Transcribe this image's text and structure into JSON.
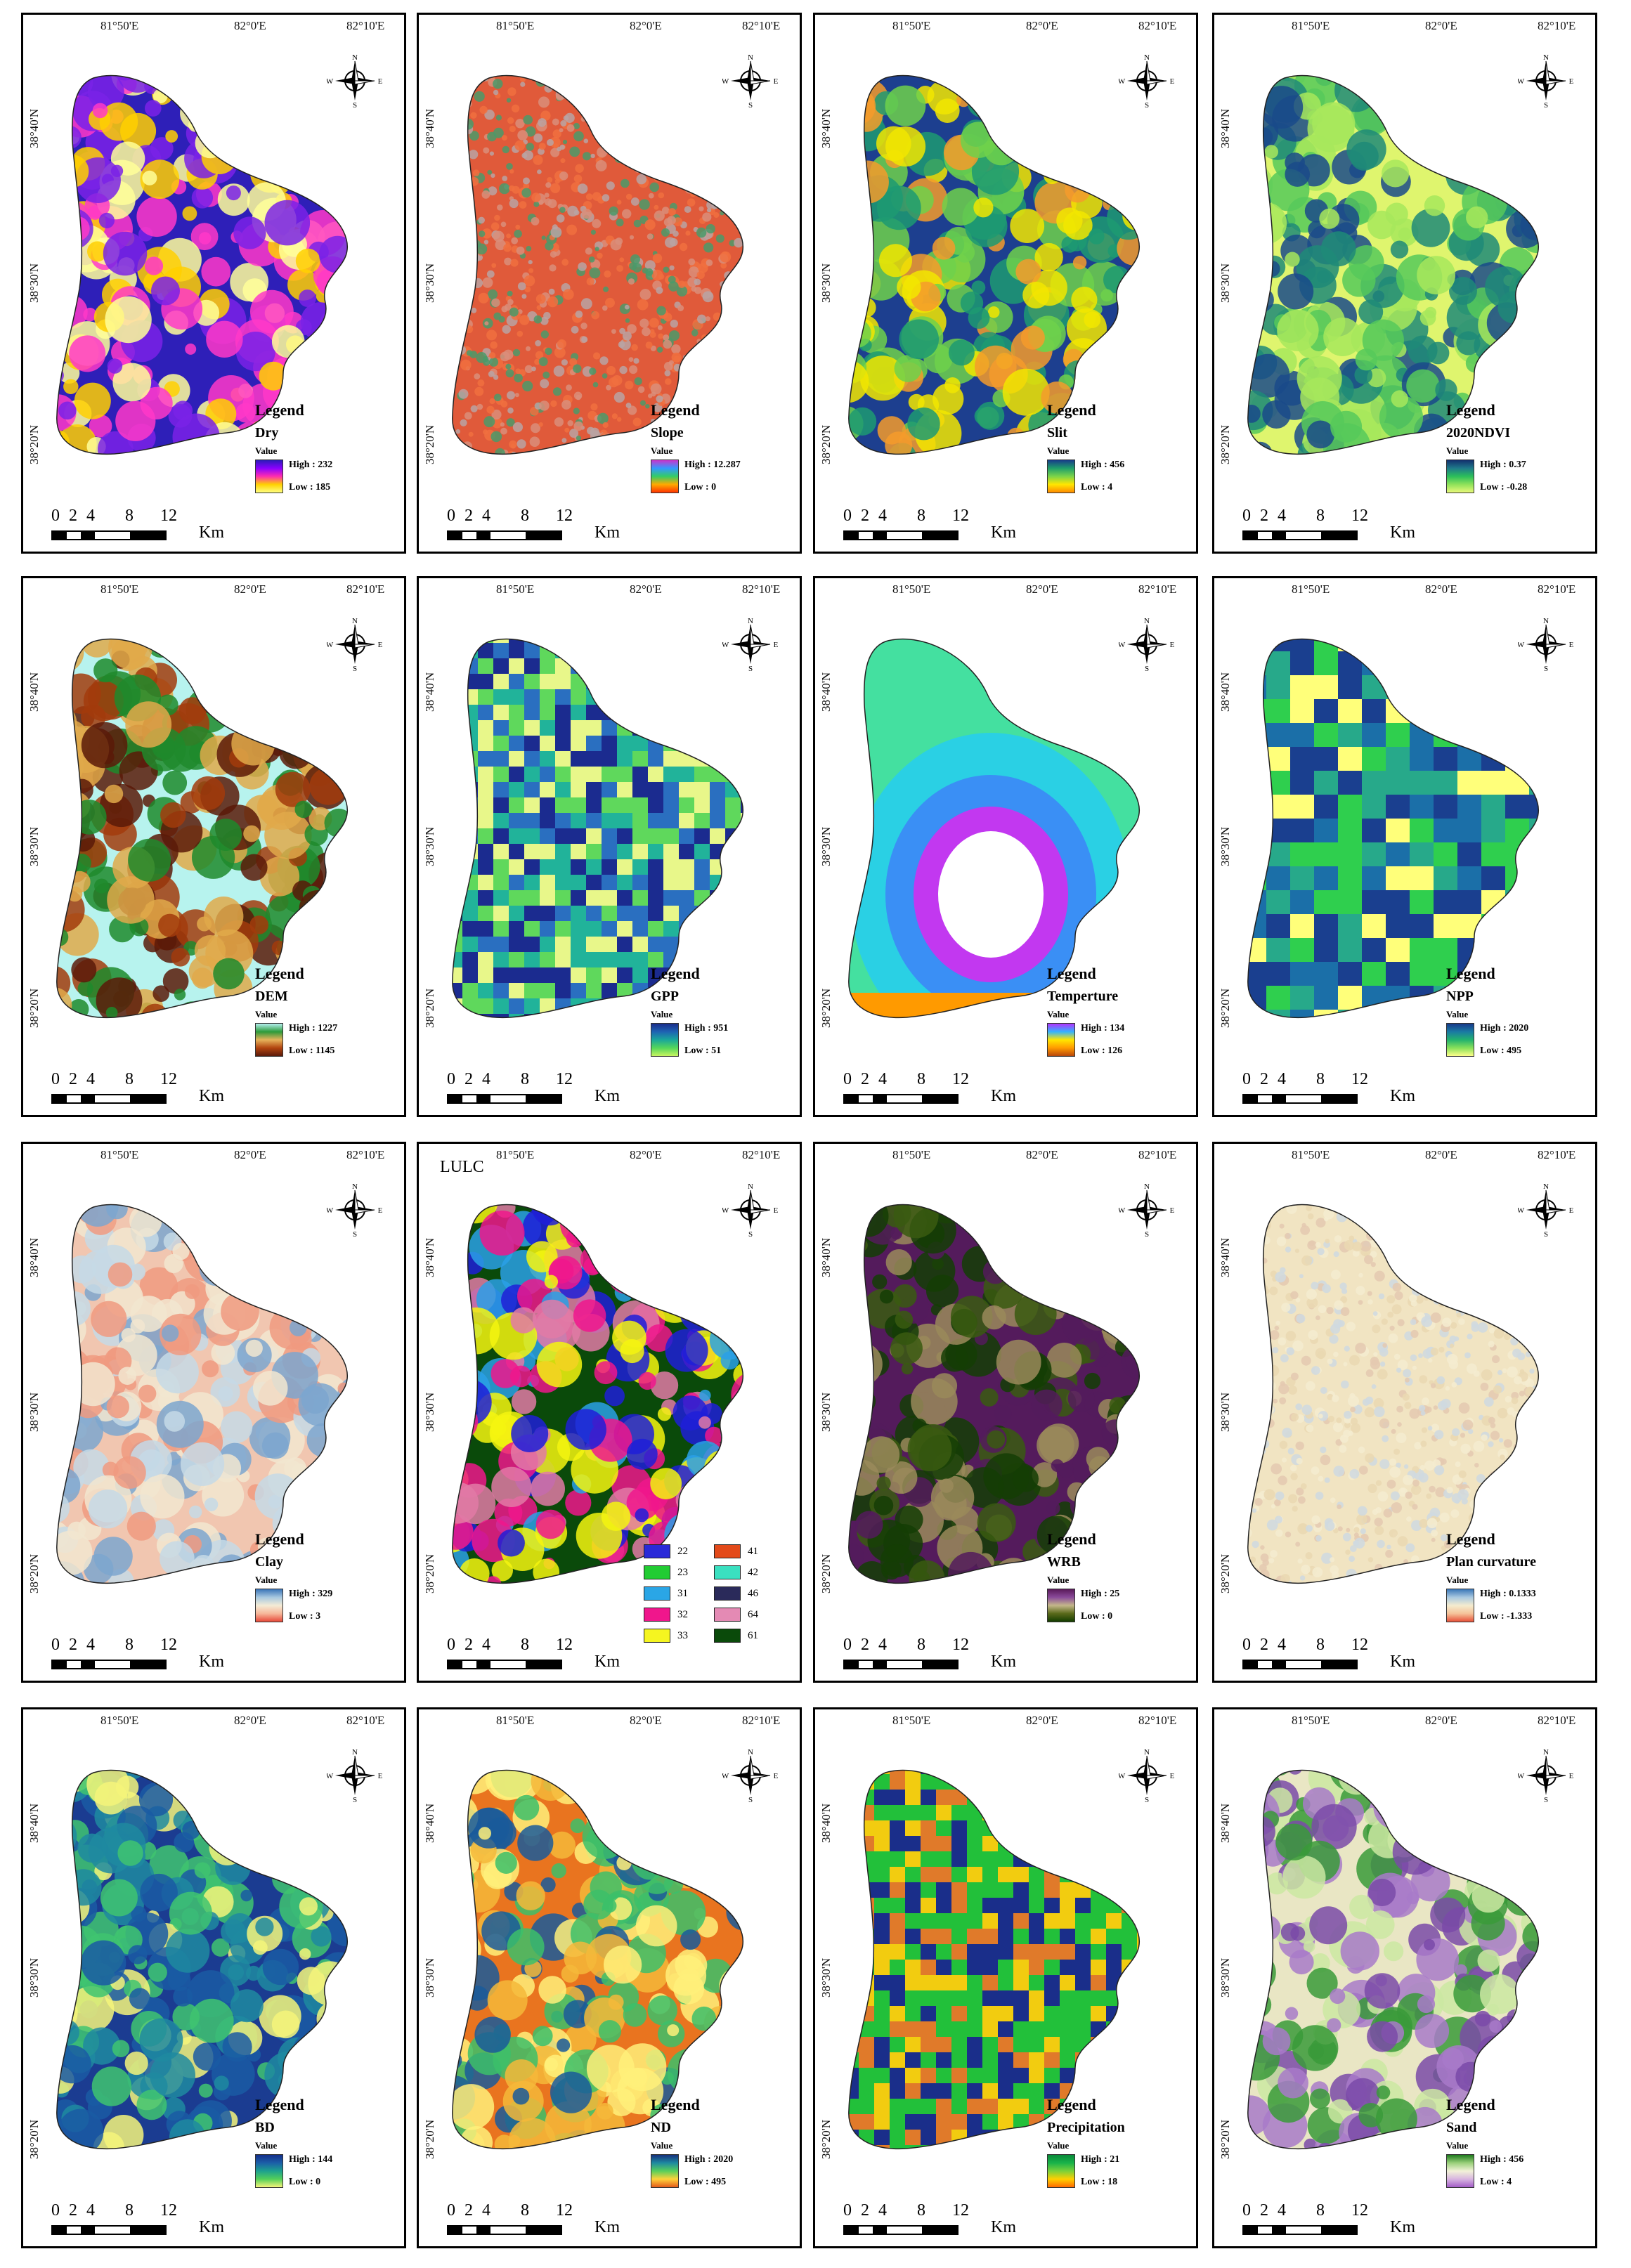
{
  "figure": {
    "lon_labels": [
      "81°50'E",
      "82°0'E",
      "82°10'E"
    ],
    "lat_labels": [
      "38°40'N",
      "38°30'N",
      "38°20'N"
    ],
    "compass": {
      "n": "N",
      "s": "S",
      "e": "E",
      "w": "W"
    },
    "scale": {
      "ticks": [
        "0",
        "2",
        "4",
        "8",
        "12"
      ],
      "unit": "Km"
    },
    "legend_word": "Legend",
    "value_word": "Value"
  },
  "panels": [
    {
      "id": "dry",
      "layer": "Dry",
      "high": "High : 232",
      "low": "Low : 185",
      "ramp": [
        "#ffff80",
        "#ffd100",
        "#ff2db0",
        "#8a00ff",
        "#2b1bb8"
      ],
      "fill": [
        "#2e1fb8",
        "#7a22e6",
        "#ff38c8",
        "#ffd000",
        "#ffff99"
      ]
    },
    {
      "id": "slope",
      "layer": "Slope",
      "high": "High : 12.287",
      "low": "Low : 0",
      "ramp": [
        "#ff3300",
        "#ffaa00",
        "#33cc66",
        "#3399ff",
        "#cc33cc"
      ],
      "fill": [
        "#e05a3a",
        "#d98e7a",
        "#b9a3a3",
        "#4a9a6a",
        "#f07040"
      ]
    },
    {
      "id": "slit",
      "layer": "Slit",
      "high": "High : 456",
      "low": "Low : 4",
      "ramp": [
        "#ff8a00",
        "#ffe600",
        "#7bd44a",
        "#1f9e6a",
        "#173d8a"
      ],
      "fill": [
        "#1d3f8f",
        "#1d9a72",
        "#6fd14b",
        "#f2e600",
        "#f59b2b"
      ]
    },
    {
      "id": "ndvi",
      "layer": "2020NDVI",
      "high": "High : 0.37",
      "low": "Low : -0.28",
      "ramp": [
        "#e9f97a",
        "#8fe25a",
        "#2bbf5a",
        "#1f7a8a",
        "#12306e"
      ],
      "fill": [
        "#dff56e",
        "#a7e85c",
        "#56c95a",
        "#1e8a78",
        "#1a4a8a"
      ]
    },
    {
      "id": "dem",
      "layer": "DEM",
      "high": "High : 1227",
      "low": "Low : 1145",
      "ramp": [
        "#5b1a0a",
        "#b2440f",
        "#e6b25a",
        "#2c9a3a",
        "#b3f0ee"
      ],
      "fill": [
        "#b7f3ee",
        "#1f8a2c",
        "#e0a94a",
        "#a23b0c",
        "#5a1a08"
      ]
    },
    {
      "id": "gpp",
      "layer": "GPP",
      "high": "High : 951",
      "low": "Low : 51",
      "ramp": [
        "#c8f560",
        "#54d65a",
        "#1aa79a",
        "#1e63b3",
        "#1a2d8c"
      ],
      "fill": [
        "#e8f78a",
        "#5fd85c",
        "#21b39a",
        "#2a6fc0",
        "#1b2b8f"
      ]
    },
    {
      "id": "temp",
      "layer": "Temperture",
      "high": "High : 134",
      "low": "Low : 126",
      "ramp": [
        "#b8460a",
        "#ff9a00",
        "#ffe600",
        "#33b3ff",
        "#b233ff"
      ],
      "fill": [
        "#44e0a0",
        "#2ad0e4",
        "#3a8ff5",
        "#c238f0",
        "#ffffff"
      ]
    },
    {
      "id": "npp",
      "layer": "NPP",
      "high": "High : 2020",
      "low": "Low : 495",
      "ramp": [
        "#ffff8a",
        "#87e05a",
        "#22b26e",
        "#1a7aa3",
        "#173a8a"
      ],
      "fill": [
        "#2fcf4e",
        "#27a98a",
        "#1b6fa8",
        "#1a3f8f",
        "#ffff7a"
      ]
    },
    {
      "id": "clay",
      "layer": "Clay",
      "high": "High : 329",
      "low": "Low : 3",
      "ramp": [
        "#e84a3a",
        "#f6b79a",
        "#f4ecd6",
        "#a7c8e0",
        "#3a75b8"
      ],
      "fill": [
        "#f1c6b0",
        "#f2e6d0",
        "#c5d9e6",
        "#f09a80",
        "#7da6cf"
      ]
    },
    {
      "id": "lulc",
      "layer": "LULC",
      "fill": [
        "#0a4a0a",
        "#f5f50f",
        "#1f1fd8",
        "#f0168c",
        "#2aa0e6",
        "#e27aa6"
      ]
    },
    {
      "id": "wrb",
      "layer": "WRB",
      "high": "High : 25",
      "low": "Low : 0",
      "ramp": [
        "#143d00",
        "#5a6a1a",
        "#c4b78a",
        "#8a4a9a",
        "#5a1a5a"
      ],
      "fill": [
        "#541b5c",
        "#143d05",
        "#3a5a10",
        "#9a8a5a",
        "#541b5c"
      ]
    },
    {
      "id": "plan",
      "layer": "Plan curvature",
      "high": "High : 0.1333",
      "low": "Low : -1.333",
      "ramp": [
        "#e8523a",
        "#f5c39a",
        "#f4eccf",
        "#a9c9e1",
        "#3a77b8"
      ],
      "fill": [
        "#f1e4c2",
        "#ead8b2",
        "#f4ecd0",
        "#e4c9b0",
        "#cfd9e0"
      ]
    },
    {
      "id": "bd",
      "layer": "BD",
      "high": "High : 144",
      "low": "Low : 0",
      "ramp": [
        "#f6f57a",
        "#53cf59",
        "#1da18e",
        "#1c5fa8",
        "#142e8a"
      ],
      "fill": [
        "#1b3c91",
        "#1a5aa3",
        "#1f8aa0",
        "#40c470",
        "#f5f47a"
      ]
    },
    {
      "id": "nd",
      "layer": "ND",
      "high": "High : 2020",
      "low": "Low : 495",
      "ramp": [
        "#e35b1a",
        "#ffd23a",
        "#58cf5a",
        "#1e8aa0",
        "#16307e"
      ],
      "fill": [
        "#e9741f",
        "#f5b83a",
        "#fff07a",
        "#3cbf6a",
        "#1a5a9a"
      ]
    },
    {
      "id": "precip",
      "layer": "Precipitation",
      "high": "High : 21",
      "low": "Low : 18",
      "ramp": [
        "#ff6a00",
        "#ffd000",
        "#7ad13a",
        "#18b34a",
        "#0a8a3a"
      ],
      "fill": [
        "#22c03a",
        "#f2cc10",
        "#1a2e8a",
        "#e07a2a",
        "#22c03a"
      ]
    },
    {
      "id": "sand",
      "layer": "Sand",
      "high": "High : 456",
      "low": "Low : 4",
      "ramp": [
        "#a25cc7",
        "#d8b5e0",
        "#f2f2d8",
        "#9ad07a",
        "#1e7a1e"
      ],
      "fill": [
        "#e9e6c4",
        "#a87ac9",
        "#cbe7a2",
        "#3a9a3a",
        "#7a4aa8"
      ]
    }
  ],
  "lulc_legend": [
    {
      "code": "22",
      "color": "#2a2ad8"
    },
    {
      "code": "41",
      "color": "#e34a1a"
    },
    {
      "code": "23",
      "color": "#22cc33"
    },
    {
      "code": "42",
      "color": "#3ae0c0"
    },
    {
      "code": "31",
      "color": "#2aa6e6"
    },
    {
      "code": "46",
      "color": "#2a2a5a"
    },
    {
      "code": "32",
      "color": "#f0168c"
    },
    {
      "code": "64",
      "color": "#e48ab4"
    },
    {
      "code": "33",
      "color": "#f5f520"
    },
    {
      "code": "61",
      "color": "#0a4a0a"
    }
  ]
}
